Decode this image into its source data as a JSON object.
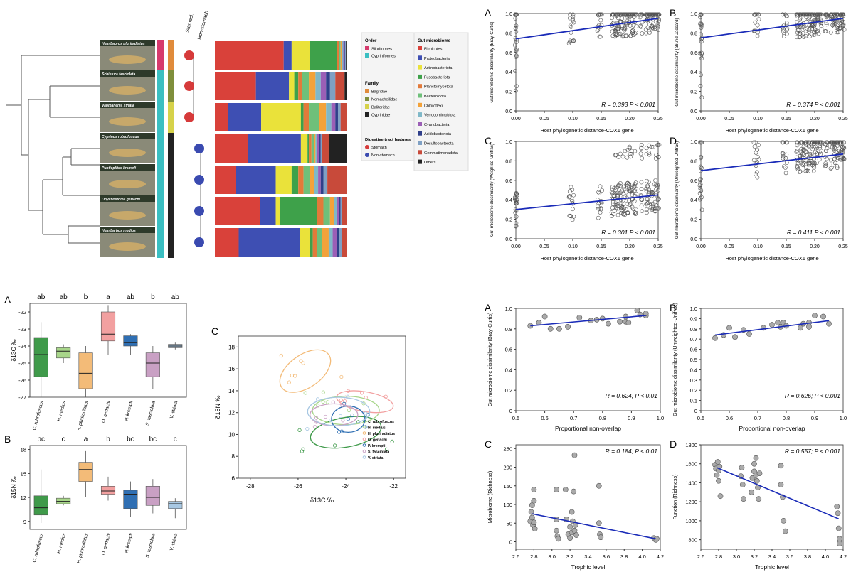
{
  "phylo": {
    "species_labels": [
      "Hemibagrus pluriradiatus",
      "Schistura fasciolata",
      "Vanmanenia striata",
      "Cyprinus rubrofuscus",
      "Puntioplites krempfi",
      "Onychostoma gerlachi",
      "Hemibarbus medius"
    ],
    "stomach_header": "Stomach",
    "nonstomach_header": "Non-stomach",
    "stomach_pattern": [
      "stomach",
      "stomach",
      "stomach",
      "non",
      "non",
      "non",
      "non"
    ],
    "order_colors": [
      "#d63a6d",
      "#3bbfc2",
      "#3bbfc2",
      "#3bbfc2",
      "#3bbfc2",
      "#3bbfc2",
      "#3bbfc2"
    ],
    "family_colors": [
      "#e08b3b",
      "#7f8f3c",
      "#d6d24a",
      "#222222",
      "#222222",
      "#222222",
      "#222222"
    ],
    "stack_data": [
      [
        0.52,
        0.06,
        0.14,
        0.2,
        0.02,
        0.01,
        0.01,
        0.01,
        0.01,
        0.005,
        0.005,
        0.0
      ],
      [
        0.31,
        0.25,
        0.04,
        0.03,
        0.03,
        0.05,
        0.05,
        0.04,
        0.04,
        0.03,
        0.04,
        0.07
      ],
      [
        0.1,
        0.25,
        0.3,
        0.02,
        0.04,
        0.08,
        0.05,
        0.04,
        0.03,
        0.02,
        0.02,
        0.05
      ],
      [
        0.25,
        0.4,
        0.05,
        0.01,
        0.02,
        0.02,
        0.01,
        0.01,
        0.02,
        0.01,
        0.01,
        0.05
      ],
      [
        0.16,
        0.3,
        0.12,
        0.05,
        0.04,
        0.05,
        0.03,
        0.03,
        0.02,
        0.02,
        0.03,
        0.15
      ],
      [
        0.34,
        0.12,
        0.03,
        0.28,
        0.05,
        0.05,
        0.03,
        0.02,
        0.02,
        0.01,
        0.01,
        0.04
      ],
      [
        0.18,
        0.46,
        0.08,
        0.02,
        0.03,
        0.04,
        0.05,
        0.03,
        0.03,
        0.02,
        0.02,
        0.04
      ]
    ]
  },
  "legend": {
    "order_title": "Order",
    "order_items": [
      {
        "label": "Siluriformes",
        "color": "#d63a6d"
      },
      {
        "label": "Cypriniformes",
        "color": "#3bbfc2"
      }
    ],
    "family_title": "Family",
    "family_items": [
      {
        "label": "Bagridae",
        "color": "#e08b3b"
      },
      {
        "label": "Nemacheilidae",
        "color": "#7f8f3c"
      },
      {
        "label": "Balitoridae",
        "color": "#d6d24a"
      },
      {
        "label": "Cyprinidae",
        "color": "#222222"
      }
    ],
    "digestive_title": "Digestive tract features",
    "digestive_items": [
      {
        "label": "Stomach",
        "color": "#d63a3a"
      },
      {
        "label": "Non-stomach",
        "color": "#3a4ab0"
      }
    ],
    "gut_title": "Gut microbiome",
    "gut_items": [
      {
        "label": "Firmicutes",
        "color": "#d9413a"
      },
      {
        "label": "Proteobacteria",
        "color": "#3e4fb3"
      },
      {
        "label": "Actinobacteriota",
        "color": "#eae23a"
      },
      {
        "label": "Fusobacteriota",
        "color": "#3ea14a"
      },
      {
        "label": "Planctomycetota",
        "color": "#e27a3a"
      },
      {
        "label": "Bacteroidota",
        "color": "#6ec07a"
      },
      {
        "label": "Chloroflexi",
        "color": "#f3a23a"
      },
      {
        "label": "Verrucomicrobiota",
        "color": "#7fb8c8"
      },
      {
        "label": "Cyanobacteria",
        "color": "#9b5fb6"
      },
      {
        "label": "Acidobacteriota",
        "color": "#2f3f8a"
      },
      {
        "label": "Desulfobacterota",
        "color": "#7fa0c4"
      },
      {
        "label": "Gemmatimonadota",
        "color": "#c84a3a"
      },
      {
        "label": "Others",
        "color": "#222222"
      }
    ]
  },
  "chart_data": [
    {
      "panel": "A",
      "type": "scatter",
      "xlabel": "Host phylogenetic distance-COX1 gene",
      "ylabel": "Gut microbiome dissimilarity (Bray-Curtis)",
      "xlim": [
        0,
        0.25
      ],
      "ylim": [
        0,
        1.0
      ],
      "xticks": [
        "0.00",
        "0.05",
        "0.10",
        "0.15",
        "0.20",
        "0.25"
      ],
      "yticks": [
        "0.0",
        "0.2",
        "0.4",
        "0.6",
        "0.8",
        "1.0"
      ],
      "fit": [
        [
          0,
          0.74
        ],
        [
          0.25,
          0.95
        ]
      ],
      "stat": "R = 0.393  P < 0.001",
      "seed": 11
    },
    {
      "panel": "B",
      "type": "scatter",
      "xlabel": "Host phylogenetic distance-COX1 gene",
      "ylabel": "Gut microbiome dissimilarity (abund-Jaccard)",
      "xlim": [
        0,
        0.25
      ],
      "ylim": [
        0,
        1.0
      ],
      "xticks": [
        "0.00",
        "0.05",
        "0.10",
        "0.15",
        "0.20",
        "0.25"
      ],
      "yticks": [
        "0.0",
        "0.2",
        "0.4",
        "0.6",
        "0.8",
        "1.0"
      ],
      "fit": [
        [
          0,
          0.75
        ],
        [
          0.25,
          0.95
        ]
      ],
      "stat": "R = 0.374  P < 0.001",
      "seed": 23
    },
    {
      "panel": "C",
      "type": "scatter",
      "xlabel": "Host phylogenetic distance-COX1 gene",
      "ylabel": "Gut microbiome dissimilarity (Weighted-Unifrac)",
      "xlim": [
        0,
        0.25
      ],
      "ylim": [
        0,
        1.0
      ],
      "xticks": [
        "0.00",
        "0.05",
        "0.10",
        "0.15",
        "0.20",
        "0.25"
      ],
      "yticks": [
        "0.0",
        "0.2",
        "0.4",
        "0.6",
        "0.8",
        "1.0"
      ],
      "fit": [
        [
          0,
          0.3
        ],
        [
          0.25,
          0.45
        ]
      ],
      "stat": "R = 0.301  P < 0.001",
      "seed": 37
    },
    {
      "panel": "D",
      "type": "scatter",
      "xlabel": "Host phylogenetic distance-COX1 gene",
      "ylabel": "Gut microbiome dissimilarity (Unweighted-Unifrac)",
      "xlim": [
        0,
        0.25
      ],
      "ylim": [
        0,
        1.0
      ],
      "xticks": [
        "0.00",
        "0.05",
        "0.10",
        "0.15",
        "0.20",
        "0.25"
      ],
      "yticks": [
        "0.0",
        "0.2",
        "0.4",
        "0.6",
        "0.8",
        "1.0"
      ],
      "fit": [
        [
          0,
          0.7
        ],
        [
          0.25,
          0.87
        ]
      ],
      "stat": "R = 0.411  P < 0.001",
      "seed": 53
    },
    {
      "panel": "A",
      "type": "box",
      "ylabel": "δ13C ‰",
      "ylim": [
        -27,
        -21.5
      ],
      "yticks": [
        "-27",
        "-26",
        "-25",
        "-24",
        "-23",
        "-22"
      ],
      "categories": [
        "C. rubrofuscus",
        "H. medius",
        "H. pluriradiatus",
        "O. gerlachi",
        "P. krempfi",
        "S. fasciolata",
        "V. striata"
      ],
      "letters": [
        "ab",
        "ab",
        "b",
        "a",
        "ab",
        "b",
        "ab"
      ],
      "colors": [
        "#3f9a4a",
        "#a8d68a",
        "#f3bb78",
        "#f2a0a0",
        "#2f6fb3",
        "#c9a0c4",
        "#a8c8e3"
      ],
      "boxes": [
        [
          -27.0,
          -25.8,
          -24.5,
          -23.5,
          -22.6
        ],
        [
          -25.0,
          -24.7,
          -24.3,
          -24.1,
          -23.9
        ],
        [
          -27.0,
          -26.5,
          -25.6,
          -24.4,
          -24.0
        ],
        [
          -24.5,
          -23.7,
          -23.3,
          -22.0,
          -21.6
        ],
        [
          -24.5,
          -24.0,
          -23.8,
          -23.4,
          -23.3
        ],
        [
          -26.5,
          -25.8,
          -25.0,
          -24.4,
          -24.0
        ],
        [
          -24.2,
          -24.1,
          -24.0,
          -23.9,
          -23.8
        ]
      ]
    },
    {
      "panel": "B",
      "type": "box",
      "ylabel": "δ15N ‰",
      "ylim": [
        8,
        18.5
      ],
      "yticks": [
        "9",
        "12",
        "15",
        "18"
      ],
      "categories": [
        "C. rubrofuscus",
        "H. medius",
        "H. pluriradiatus",
        "O. gerlachi",
        "P. krempfi",
        "S. fasciolata",
        "V. striata"
      ],
      "letters": [
        "bc",
        "c",
        "a",
        "b",
        "bc",
        "bc",
        "c"
      ],
      "colors": [
        "#3f9a4a",
        "#a8d68a",
        "#f3bb78",
        "#f2a0a0",
        "#2f6fb3",
        "#c9a0c4",
        "#a8c8e3"
      ],
      "boxes": [
        [
          8.8,
          9.8,
          10.7,
          12.2,
          15.5
        ],
        [
          11.0,
          11.2,
          11.5,
          11.9,
          12.2
        ],
        [
          12.0,
          14.0,
          15.5,
          16.4,
          17.8
        ],
        [
          11.6,
          12.4,
          12.8,
          13.4,
          14.6
        ],
        [
          9.6,
          10.6,
          12.4,
          12.9,
          14.0
        ],
        [
          10.0,
          11.0,
          12.0,
          13.4,
          14.3
        ],
        [
          9.4,
          10.6,
          11.2,
          11.5,
          11.9
        ]
      ]
    },
    {
      "panel": "C",
      "type": "scatter",
      "xlabel": "δ13C ‰",
      "ylabel": "δ15N ‰",
      "xlim": [
        -28.5,
        -21.5
      ],
      "ylim": [
        6,
        19
      ],
      "xticks": [
        "-28",
        "-26",
        "-24",
        "-22"
      ],
      "yticks": [
        "6",
        "8",
        "10",
        "12",
        "14",
        "16",
        "18"
      ],
      "series": [
        {
          "name": "C. rubrofuscus",
          "color": "#3f9a4a"
        },
        {
          "name": "H. medius",
          "color": "#a8d68a"
        },
        {
          "name": "H. pluriradiatus",
          "color": "#f3bb78"
        },
        {
          "name": "O. gerlachi",
          "color": "#f2a0a0"
        },
        {
          "name": "P. krempfi",
          "color": "#2f6fb3"
        },
        {
          "name": "S. fasciolata",
          "color": "#c9a0c4"
        },
        {
          "name": "V. striata",
          "color": "#a8c8e3"
        }
      ],
      "ellipses": [
        [
          -24.0,
          10.2,
          1.5,
          1.35,
          -10
        ],
        [
          -24.0,
          12.2,
          1.4,
          1.3,
          0
        ],
        [
          -25.7,
          15.8,
          1.2,
          1.5,
          -35
        ],
        [
          -23.2,
          13.0,
          1.2,
          0.9,
          10
        ],
        [
          -23.9,
          11.4,
          0.7,
          1.2,
          0
        ],
        [
          -24.5,
          11.8,
          1.0,
          1.0,
          0
        ],
        [
          -24.3,
          12.1,
          1.3,
          1.3,
          0
        ]
      ],
      "seed": 71
    },
    {
      "panel": "A",
      "type": "scatter",
      "xlabel": "Proportional non-overlap",
      "ylabel": "Gut microbiome dissimilarity (Bray-Curtis)",
      "xlim": [
        0.5,
        1.0
      ],
      "ylim": [
        0,
        1.0
      ],
      "xticks": [
        "0.5",
        "0.6",
        "0.7",
        "0.8",
        "0.9",
        "1.0"
      ],
      "yticks": [
        "0",
        "0.2",
        "0.4",
        "0.6",
        "0.8",
        "1.0"
      ],
      "fit": [
        [
          0.55,
          0.83
        ],
        [
          0.95,
          0.93
        ]
      ],
      "stat": "R = 0.624;  P < 0.01",
      "points": [
        [
          0.55,
          0.83
        ],
        [
          0.58,
          0.86
        ],
        [
          0.6,
          0.92
        ],
        [
          0.62,
          0.8
        ],
        [
          0.65,
          0.8
        ],
        [
          0.68,
          0.82
        ],
        [
          0.72,
          0.91
        ],
        [
          0.76,
          0.88
        ],
        [
          0.78,
          0.89
        ],
        [
          0.8,
          0.9
        ],
        [
          0.82,
          0.85
        ],
        [
          0.86,
          0.87
        ],
        [
          0.88,
          0.87
        ],
        [
          0.88,
          0.92
        ],
        [
          0.89,
          0.86
        ],
        [
          0.92,
          0.98
        ],
        [
          0.93,
          0.94
        ],
        [
          0.95,
          0.93
        ],
        [
          0.95,
          0.95
        ]
      ]
    },
    {
      "panel": "B",
      "type": "scatter",
      "xlabel": "Proportional non-overlap",
      "ylabel": "Gut microbiome dissimilarity (Unweighted-Unifrac)",
      "xlim": [
        0.5,
        1.0
      ],
      "ylim": [
        0,
        1.0
      ],
      "xticks": [
        "0.5",
        "0.6",
        "0.7",
        "0.8",
        "0.9",
        "1.0"
      ],
      "yticks": [
        "0",
        "0.1",
        "0.2",
        "0.3",
        "0.4",
        "0.5",
        "0.6",
        "0.7",
        "0.8",
        "0.9",
        "1.0"
      ],
      "fit": [
        [
          0.55,
          0.74
        ],
        [
          0.95,
          0.88
        ]
      ],
      "stat": "R = 0.626;  P < 0.001",
      "points": [
        [
          0.55,
          0.71
        ],
        [
          0.58,
          0.74
        ],
        [
          0.6,
          0.81
        ],
        [
          0.62,
          0.72
        ],
        [
          0.65,
          0.79
        ],
        [
          0.67,
          0.75
        ],
        [
          0.72,
          0.81
        ],
        [
          0.75,
          0.84
        ],
        [
          0.77,
          0.86
        ],
        [
          0.78,
          0.82
        ],
        [
          0.79,
          0.86
        ],
        [
          0.8,
          0.83
        ],
        [
          0.85,
          0.81
        ],
        [
          0.86,
          0.85
        ],
        [
          0.88,
          0.82
        ],
        [
          0.88,
          0.86
        ],
        [
          0.9,
          0.93
        ],
        [
          0.93,
          0.92
        ],
        [
          0.95,
          0.85
        ]
      ]
    },
    {
      "panel": "C",
      "type": "scatter",
      "xlabel": "Trophic level",
      "ylabel": "Microbiome (Richness)",
      "xlim": [
        2.6,
        4.2
      ],
      "ylim": [
        -20,
        260
      ],
      "xticks": [
        "2.6",
        "2.8",
        "3.0",
        "3.2",
        "3.4",
        "3.6",
        "3.8",
        "4.0",
        "4.2"
      ],
      "yticks": [
        "0",
        "50",
        "100",
        "150",
        "200",
        "250"
      ],
      "fit": [
        [
          2.78,
          75
        ],
        [
          4.15,
          8
        ]
      ],
      "stat": "R = 0.184;  P < 0.01",
      "points": [
        [
          2.76,
          55
        ],
        [
          2.77,
          80
        ],
        [
          2.78,
          98
        ],
        [
          2.78,
          65
        ],
        [
          2.79,
          45
        ],
        [
          2.8,
          140
        ],
        [
          2.8,
          110
        ],
        [
          2.8,
          52
        ],
        [
          2.81,
          35
        ],
        [
          3.05,
          140
        ],
        [
          3.05,
          60
        ],
        [
          3.05,
          30
        ],
        [
          3.06,
          15
        ],
        [
          3.07,
          8
        ],
        [
          3.15,
          140
        ],
        [
          3.16,
          60
        ],
        [
          3.18,
          20
        ],
        [
          3.2,
          10
        ],
        [
          3.2,
          40
        ],
        [
          3.22,
          25
        ],
        [
          3.22,
          80
        ],
        [
          3.23,
          55
        ],
        [
          3.24,
          135
        ],
        [
          3.25,
          232
        ],
        [
          3.25,
          30
        ],
        [
          3.26,
          45
        ],
        [
          3.27,
          18
        ],
        [
          3.52,
          150
        ],
        [
          3.52,
          50
        ],
        [
          3.53,
          20
        ],
        [
          3.54,
          12
        ],
        [
          4.13,
          10
        ],
        [
          4.15,
          5
        ],
        [
          4.16,
          8
        ]
      ]
    },
    {
      "panel": "D",
      "type": "scatter",
      "xlabel": "Trophic level",
      "ylabel": "Function (Richness)",
      "xlim": [
        2.6,
        4.2
      ],
      "ylim": [
        700,
        1800
      ],
      "xticks": [
        "2.6",
        "2.8",
        "3.0",
        "3.2",
        "3.4",
        "3.6",
        "3.8",
        "4.0",
        "4.2"
      ],
      "yticks": [
        "800",
        "1000",
        "1200",
        "1400",
        "1600",
        "1800"
      ],
      "fit": [
        [
          2.78,
          1560
        ],
        [
          4.15,
          1020
        ]
      ],
      "stat": "R = 0.557;  P < 0.001",
      "points": [
        [
          2.76,
          1590
        ],
        [
          2.77,
          1550
        ],
        [
          2.78,
          1480
        ],
        [
          2.79,
          1620
        ],
        [
          2.8,
          1530
        ],
        [
          2.8,
          1420
        ],
        [
          2.81,
          1570
        ],
        [
          2.82,
          1260
        ],
        [
          3.05,
          1470
        ],
        [
          3.06,
          1560
        ],
        [
          3.07,
          1380
        ],
        [
          3.08,
          1230
        ],
        [
          3.17,
          1300
        ],
        [
          3.18,
          1450
        ],
        [
          3.2,
          1600
        ],
        [
          3.2,
          1520
        ],
        [
          3.22,
          1480
        ],
        [
          3.22,
          1660
        ],
        [
          3.23,
          1420
        ],
        [
          3.24,
          1350
        ],
        [
          3.25,
          1230
        ],
        [
          3.26,
          1500
        ],
        [
          3.5,
          1580
        ],
        [
          3.5,
          1380
        ],
        [
          3.52,
          1250
        ],
        [
          3.53,
          1000
        ],
        [
          3.55,
          890
        ],
        [
          4.13,
          1150
        ],
        [
          4.14,
          1080
        ],
        [
          4.15,
          920
        ],
        [
          4.16,
          810
        ],
        [
          4.16,
          760
        ]
      ]
    }
  ]
}
